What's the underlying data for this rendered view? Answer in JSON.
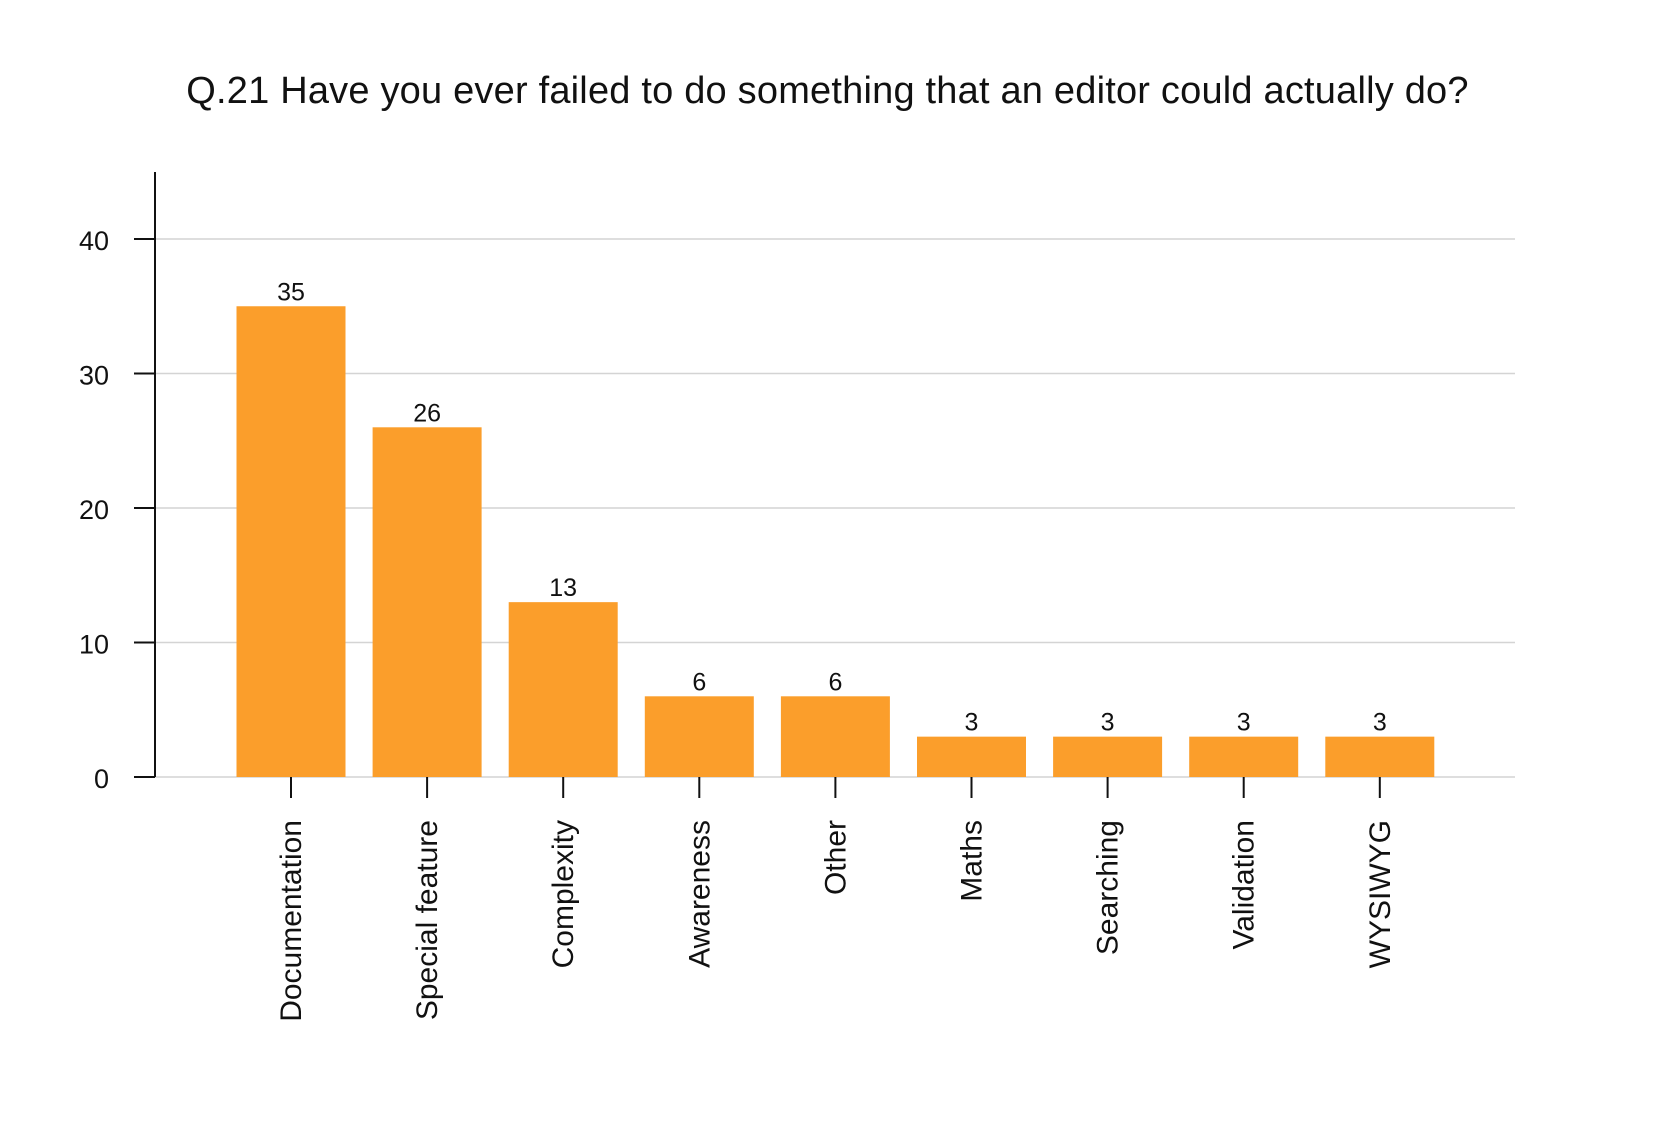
{
  "chart_data": {
    "type": "bar",
    "title": "Q.21 Have you ever failed to do something that an editor could actually do?",
    "xlabel": "",
    "ylabel": "",
    "categories": [
      "Documentation",
      "Special feature",
      "Complexity",
      "Awareness",
      "Other",
      "Maths",
      "Searching",
      "Validation",
      "WYSIWYG"
    ],
    "values": [
      35,
      26,
      13,
      6,
      6,
      3,
      3,
      3,
      3
    ],
    "data_labels": [
      "35",
      "26",
      "13",
      "6",
      "6",
      "3",
      "3",
      "3",
      "3"
    ],
    "y_ticks": [
      0,
      10,
      20,
      30,
      40
    ],
    "ylim": [
      0,
      45
    ],
    "grid": true,
    "legend": "none",
    "bar_color": "#FB9E2B",
    "grid_color": "#D4D4D4"
  }
}
